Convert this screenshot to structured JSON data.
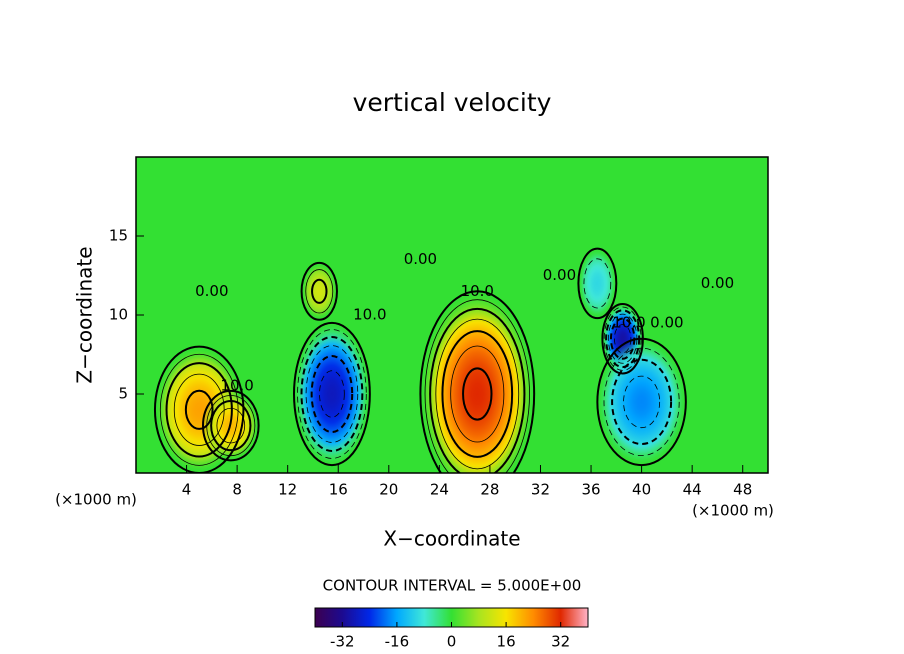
{
  "chart_data": {
    "type": "contour",
    "title": "vertical velocity",
    "x_label": "X−coordinate",
    "y_label": "Z−coordinate",
    "x_unit": "(×1000 m)",
    "y_unit": "(×1000 m)",
    "xlim": [
      0,
      50
    ],
    "xticks": [
      4,
      8,
      12,
      16,
      20,
      24,
      28,
      32,
      36,
      40,
      44,
      48
    ],
    "ylim": [
      0,
      20
    ],
    "yticks": [
      5,
      10,
      15
    ],
    "contour_interval": {
      "value": 5,
      "label": "CONTOUR INTERVAL = 5.000E+00"
    },
    "cells": [
      {
        "x": 5,
        "z": 4,
        "value": 22,
        "rx": 3.5,
        "rz": 4
      },
      {
        "x": 7.5,
        "z": 3,
        "value": 20,
        "rx": 2.2,
        "rz": 2.2
      },
      {
        "x": 15.5,
        "z": 5,
        "value": -28,
        "rx": 3,
        "rz": 4.5
      },
      {
        "x": 14.5,
        "z": 11.5,
        "value": 12,
        "rx": 1.4,
        "rz": 1.8
      },
      {
        "x": 27,
        "z": 5,
        "value": 32,
        "rx": 4.5,
        "rz": 6.5
      },
      {
        "x": 38.5,
        "z": 8.5,
        "value": -30,
        "rx": 1.6,
        "rz": 2.2
      },
      {
        "x": 40,
        "z": 4.5,
        "value": -18,
        "rx": 3.5,
        "rz": 4
      },
      {
        "x": 36.5,
        "z": 12,
        "value": -10,
        "rx": 1.5,
        "rz": 2.2
      }
    ],
    "contour_labels": [
      {
        "text": "0.00",
        "x": 6,
        "z": 11.5
      },
      {
        "text": "10.0",
        "x": 8,
        "z": 5.5
      },
      {
        "text": "10.0",
        "x": 18.5,
        "z": 10
      },
      {
        "text": "0.00",
        "x": 22.5,
        "z": 13.5
      },
      {
        "text": "10.0",
        "x": 27,
        "z": 11.5
      },
      {
        "text": "0.00",
        "x": 33.5,
        "z": 12.5
      },
      {
        "text": "10.0",
        "x": 39,
        "z": 9.5
      },
      {
        "text": "0.00",
        "x": 42,
        "z": 9.5
      },
      {
        "text": "0.00",
        "x": 46,
        "z": 12
      }
    ],
    "colorbar": {
      "lim": [
        -40,
        40
      ],
      "ticks": [
        -32,
        -16,
        0,
        16,
        32
      ],
      "colors": [
        "#3c0050",
        "#1c0a90",
        "#0028e8",
        "#00a8ff",
        "#40e8d8",
        "#33e033",
        "#a8e420",
        "#f8e400",
        "#ff8c00",
        "#e02800",
        "#ffb4c8"
      ]
    }
  }
}
